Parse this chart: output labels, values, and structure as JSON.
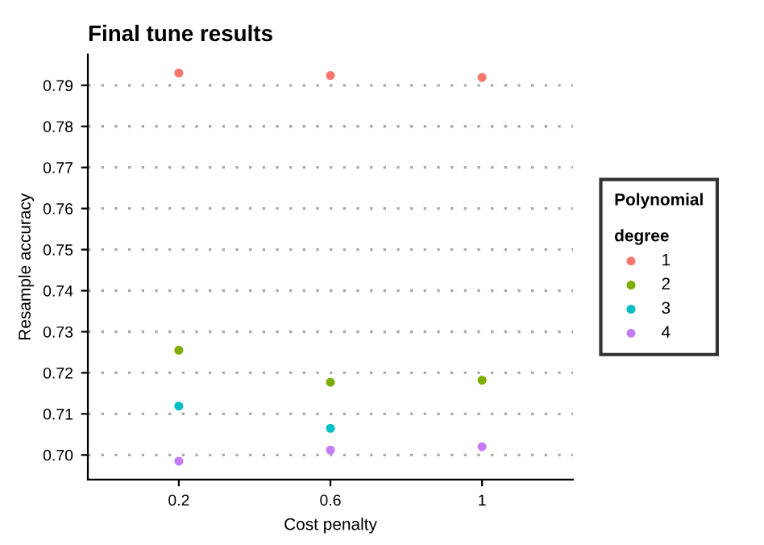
{
  "chart_data": {
    "type": "scatter",
    "title": "Final tune results",
    "xlabel": "Cost penalty",
    "ylabel": "Resample accuracy",
    "legend_title": "Polynomial\n\ndegree",
    "categories": [
      "0.2",
      "0.6",
      "1"
    ],
    "series": [
      {
        "name": "1",
        "color": "#f8766d",
        "values": [
          0.793,
          0.7924,
          0.7919
        ]
      },
      {
        "name": "2",
        "color": "#7cae00",
        "values": [
          0.7255,
          0.7177,
          0.7182
        ]
      },
      {
        "name": "3",
        "color": "#00bfc4",
        "values": [
          0.7119,
          0.7065,
          null
        ]
      },
      {
        "name": "4",
        "color": "#c77cff",
        "values": [
          0.6985,
          0.7012,
          0.702
        ]
      }
    ],
    "ylim": [
      0.694,
      0.7975
    ],
    "yticks": [
      {
        "value": 0.7,
        "label": "0.70"
      },
      0.71,
      0.72,
      0.73,
      0.74,
      0.75,
      0.76,
      0.77,
      0.78,
      0.79
    ],
    "grid": "y",
    "legend": "right",
    "marker": "circle"
  }
}
